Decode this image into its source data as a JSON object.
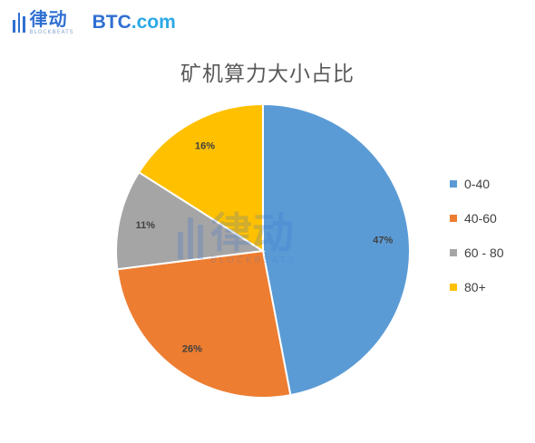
{
  "header": {
    "logo_lvdong_cn": "律动",
    "logo_lvdong_en": "BLOCKBEATS",
    "logo_btc_main": "BTC",
    "logo_btc_dot": ".com"
  },
  "watermark": {
    "cn": "律动",
    "en": "BLOCKBEATS"
  },
  "chart_data": {
    "type": "pie",
    "title": "矿机算力大小占比",
    "categories": [
      "0-40",
      "40-60",
      "60 - 80",
      "80+"
    ],
    "values": [
      47,
      26,
      11,
      16
    ],
    "labels": [
      "47%",
      "26%",
      "11%",
      "16%"
    ],
    "colors": [
      "#5b9bd5",
      "#ed7d31",
      "#a5a5a5",
      "#ffc000"
    ],
    "legend": "right"
  }
}
